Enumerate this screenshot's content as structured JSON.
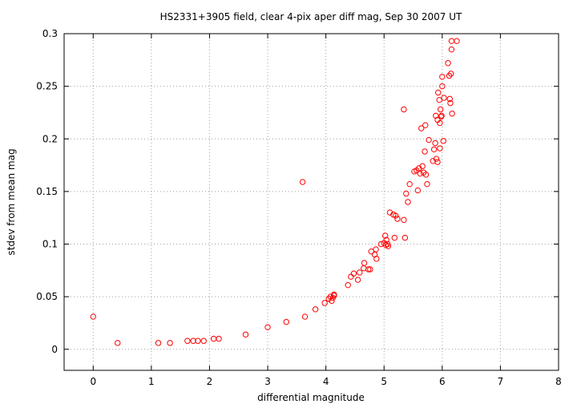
{
  "chart_data": {
    "type": "scatter",
    "title": "HS2331+3905 field, clear 4-pix aper diff mag, Sep 30 2007 UT",
    "xlabel": "differential magnitude",
    "ylabel": "stdev from mean mag",
    "xlim": [
      -0.5,
      8
    ],
    "ylim": [
      -0.02,
      0.3
    ],
    "xticks": [
      "0",
      "1",
      "2",
      "3",
      "4",
      "5",
      "6",
      "7",
      "8"
    ],
    "yticks": [
      "0",
      "0.05",
      "0.1",
      "0.15",
      "0.2",
      "0.25",
      "0.3"
    ],
    "grid": true,
    "marker_color": "#ff0000",
    "series": [
      {
        "points": [
          [
            0.0,
            0.031
          ],
          [
            0.42,
            0.006
          ],
          [
            1.12,
            0.006
          ],
          [
            1.32,
            0.006
          ],
          [
            1.62,
            0.008
          ],
          [
            1.72,
            0.008
          ],
          [
            1.8,
            0.008
          ],
          [
            1.9,
            0.008
          ],
          [
            2.07,
            0.01
          ],
          [
            2.16,
            0.01
          ],
          [
            2.62,
            0.014
          ],
          [
            3.0,
            0.021
          ],
          [
            3.32,
            0.026
          ],
          [
            3.64,
            0.031
          ],
          [
            3.82,
            0.038
          ],
          [
            3.98,
            0.044
          ],
          [
            4.05,
            0.048
          ],
          [
            4.08,
            0.05
          ],
          [
            4.1,
            0.046
          ],
          [
            4.12,
            0.049
          ],
          [
            4.14,
            0.051
          ],
          [
            4.14,
            0.052
          ],
          [
            4.38,
            0.061
          ],
          [
            4.43,
            0.069
          ],
          [
            4.48,
            0.072
          ],
          [
            4.55,
            0.066
          ],
          [
            4.58,
            0.073
          ],
          [
            4.65,
            0.077
          ],
          [
            4.66,
            0.082
          ],
          [
            4.73,
            0.076
          ],
          [
            4.76,
            0.076
          ],
          [
            4.78,
            0.093
          ],
          [
            4.84,
            0.09
          ],
          [
            4.86,
            0.095
          ],
          [
            4.87,
            0.086
          ],
          [
            4.95,
            0.1
          ],
          [
            5.0,
            0.101
          ],
          [
            5.02,
            0.108
          ],
          [
            5.03,
            0.099
          ],
          [
            5.04,
            0.104
          ],
          [
            5.06,
            0.1
          ],
          [
            5.07,
            0.098
          ],
          [
            5.1,
            0.13
          ],
          [
            5.16,
            0.128
          ],
          [
            5.18,
            0.106
          ],
          [
            5.2,
            0.127
          ],
          [
            5.23,
            0.124
          ],
          [
            5.34,
            0.123
          ],
          [
            5.36,
            0.106
          ],
          [
            5.38,
            0.148
          ],
          [
            5.41,
            0.14
          ],
          [
            5.44,
            0.157
          ],
          [
            5.52,
            0.169
          ],
          [
            5.56,
            0.17
          ],
          [
            5.58,
            0.151
          ],
          [
            5.6,
            0.172
          ],
          [
            5.62,
            0.167
          ],
          [
            5.64,
            0.21
          ],
          [
            5.66,
            0.174
          ],
          [
            5.68,
            0.168
          ],
          [
            5.7,
            0.188
          ],
          [
            5.71,
            0.213
          ],
          [
            5.72,
            0.166
          ],
          [
            5.74,
            0.157
          ],
          [
            5.77,
            0.199
          ],
          [
            5.84,
            0.179
          ],
          [
            5.86,
            0.19
          ],
          [
            5.88,
            0.196
          ],
          [
            5.89,
            0.222
          ],
          [
            5.9,
            0.181
          ],
          [
            5.92,
            0.218
          ],
          [
            5.92,
            0.178
          ],
          [
            5.93,
            0.244
          ],
          [
            5.95,
            0.237
          ],
          [
            5.96,
            0.191
          ],
          [
            5.96,
            0.215
          ],
          [
            5.97,
            0.228
          ],
          [
            5.98,
            0.221
          ],
          [
            5.99,
            0.222
          ],
          [
            6.0,
            0.259
          ],
          [
            6.0,
            0.25
          ],
          [
            6.02,
            0.198
          ],
          [
            6.03,
            0.239
          ],
          [
            6.1,
            0.272
          ],
          [
            6.12,
            0.26
          ],
          [
            6.13,
            0.238
          ],
          [
            6.14,
            0.234
          ],
          [
            6.15,
            0.262
          ],
          [
            6.16,
            0.285
          ],
          [
            6.17,
            0.224
          ],
          [
            6.16,
            0.293
          ],
          [
            6.25,
            0.293
          ],
          [
            5.34,
            0.228
          ],
          [
            3.6,
            0.159
          ]
        ]
      }
    ]
  }
}
